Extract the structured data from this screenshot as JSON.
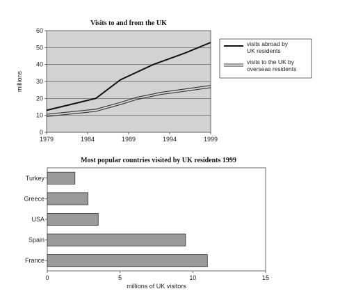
{
  "chart_data": [
    {
      "type": "line",
      "title": "Visits to and from the UK",
      "ylabel": "millions",
      "xlabel": "",
      "xlim": [
        1979,
        1999
      ],
      "ylim": [
        0,
        60
      ],
      "x_ticks": [
        "1979",
        "1984",
        "1989",
        "1994",
        "1999"
      ],
      "y_ticks": [
        "0",
        "10",
        "20",
        "30",
        "40",
        "50",
        "60"
      ],
      "grid": "horizontal",
      "legend_position": "right",
      "series": [
        {
          "name": "visits abroad by UK residents",
          "style": "solid",
          "color": "#111111",
          "x": [
            1979,
            1985,
            1988,
            1992,
            1996,
            1999
          ],
          "y": [
            13,
            20,
            31,
            40,
            47,
            53
          ]
        },
        {
          "name": "visits to the UK by overseas residents",
          "style": "double",
          "color": "#333333",
          "x": [
            1979,
            1985,
            1988,
            1990,
            1993,
            1996,
            1999
          ],
          "y": [
            10,
            13,
            17,
            20,
            23,
            25,
            27
          ]
        }
      ],
      "legend": [
        "visits abroad by UK residents",
        "visits to the UK by overseas residents"
      ]
    },
    {
      "type": "bar",
      "orientation": "horizontal",
      "title": "Most popular countries visited by UK residents 1999",
      "xlabel": "millions of UK visitors",
      "ylabel": "",
      "xlim": [
        0,
        15
      ],
      "x_ticks": [
        "0",
        "5",
        "10",
        "15"
      ],
      "categories": [
        "Turkey",
        "Greece",
        "USA",
        "Spain",
        "France"
      ],
      "values": [
        1.9,
        2.8,
        3.5,
        9.5,
        11
      ],
      "bar_color": "#9a9a9a"
    }
  ]
}
